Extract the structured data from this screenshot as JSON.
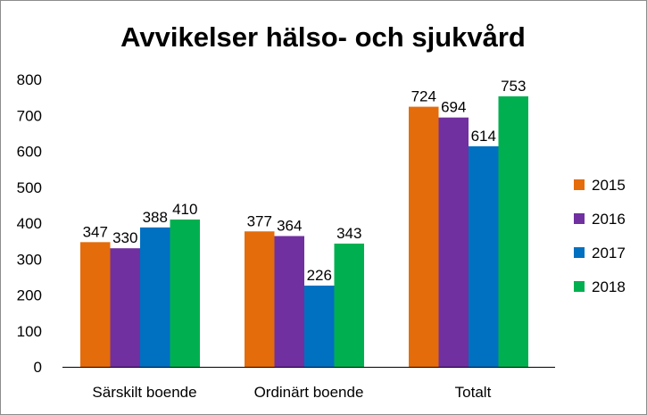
{
  "chart_data": {
    "type": "bar",
    "title": "Avvikelser hälso- och sjukvård",
    "xlabel": "",
    "ylabel": "",
    "ylim": [
      0,
      800
    ],
    "yticks": [
      0,
      100,
      200,
      300,
      400,
      500,
      600,
      700,
      800
    ],
    "grid": false,
    "legend_position": "right",
    "categories": [
      "Särskilt boende",
      "Ordinärt boende",
      "Totalt"
    ],
    "series": [
      {
        "name": "2015",
        "color": "#E46C0A",
        "values": [
          347,
          377,
          724
        ]
      },
      {
        "name": "2016",
        "color": "#7030A0",
        "values": [
          330,
          364,
          694
        ]
      },
      {
        "name": "2017",
        "color": "#0070C0",
        "values": [
          388,
          226,
          614
        ]
      },
      {
        "name": "2018",
        "color": "#00B050",
        "values": [
          410,
          343,
          753
        ]
      }
    ]
  }
}
